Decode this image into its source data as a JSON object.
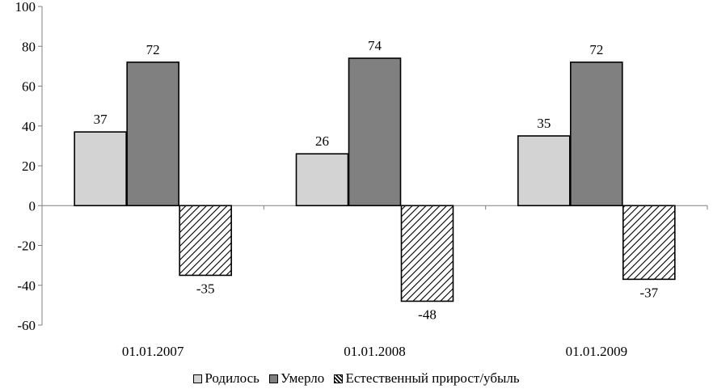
{
  "chart_data": {
    "type": "bar",
    "categories": [
      "01.01.2007",
      "01.01.2008",
      "01.01.2009"
    ],
    "series": [
      {
        "name": "Родилось",
        "values": [
          37,
          26,
          35
        ],
        "color": "#d3d3d3",
        "pattern": "solid"
      },
      {
        "name": "Умерло",
        "values": [
          72,
          74,
          72
        ],
        "color": "#808080",
        "pattern": "solid"
      },
      {
        "name": "Естественный прирост/убыль",
        "values": [
          -35,
          -48,
          -37
        ],
        "color": "#ffffff",
        "pattern": "diagonal-hatch"
      }
    ],
    "ylim": [
      -60,
      100
    ],
    "yticks": [
      "100",
      "80",
      "60",
      "40",
      "20",
      "0",
      "-20",
      "-40",
      "-60"
    ],
    "data_labels": [
      [
        "37",
        "26",
        "35"
      ],
      [
        "72",
        "74",
        "72"
      ],
      [
        "-35",
        "-48",
        "-37"
      ]
    ],
    "legend_position": "bottom",
    "grid": false
  }
}
